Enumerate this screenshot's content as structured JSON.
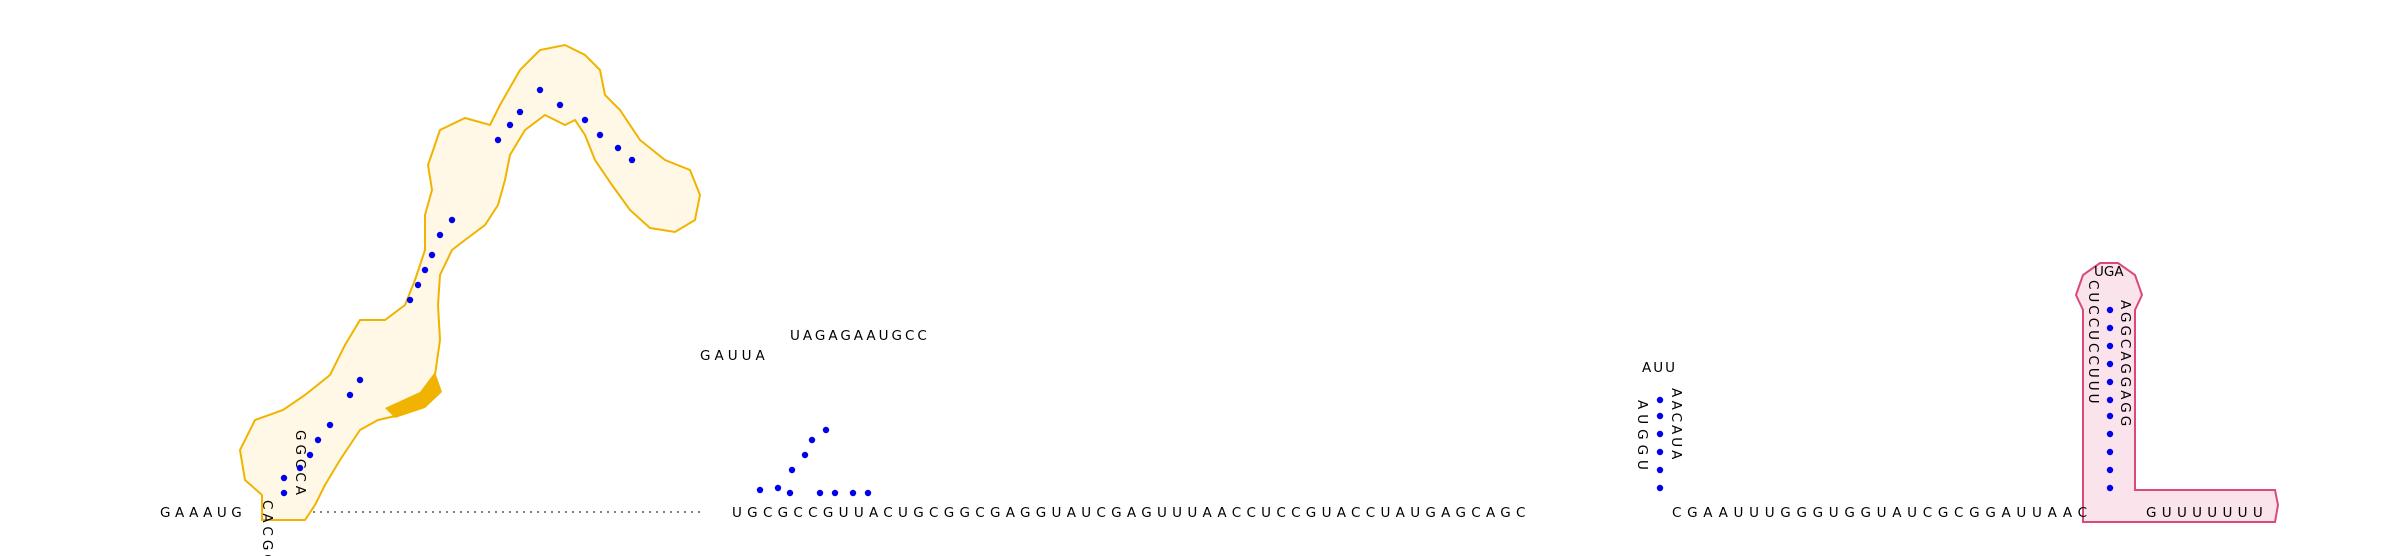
{
  "diagram": {
    "type": "rna-secondary-structure",
    "colors": {
      "background": "#ffffff",
      "base_text": "#000000",
      "pair_dot": "#0000ee",
      "backbone_dash": "#000000",
      "highlight_outline": "#f0b400",
      "highlight_fill": "#fff8e6",
      "highlight_solid": "#f0b400",
      "terminator_outline": "#d94a7a",
      "terminator_fill": "#fbe3ec"
    },
    "sequences": {
      "baseline_5prime": "GAAAUG",
      "hairpin1_left_stem": "CACGG",
      "hairpin1_right_stem": "GGCCA",
      "hairpin2_middle": "UGCGCCGUUACUGCGGCGAGGUAUCGAGUUUAACCUCCGUACCUAUGAGCAGC",
      "hairpin2_loop_a": "GAUUA",
      "hairpin2_loop_b": "UAGAGAAUGCC",
      "hairpin3_left_stem": "AUGGU",
      "hairpin3_loop": "AUU",
      "hairpin3_right_stem": "AACAUA",
      "baseline_after_hairpin3": "CGAAUUUGGGUGGUAUCGCGGAUUAAC",
      "terminator_left_stem": "CUCCUCCUUU",
      "terminator_loop": "UGA",
      "terminator_right_stem": "AGGCAGGAGG",
      "terminator_tail": "GUUUUUUU"
    }
  }
}
